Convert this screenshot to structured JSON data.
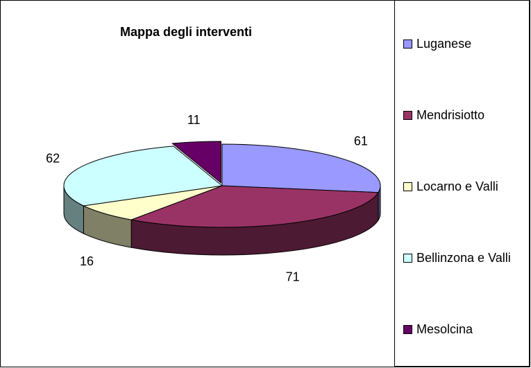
{
  "chart_data": {
    "type": "pie",
    "title": "Mappa degli interventi",
    "categories": [
      "Luganese",
      "Mendrisiotto",
      "Locarno e Valli",
      "Bellinzona e Valli",
      "Mesolcina"
    ],
    "values": [
      61,
      71,
      16,
      62,
      11
    ],
    "colors": [
      "#9999ff",
      "#993366",
      "#ffffcc",
      "#ccffff",
      "#660066"
    ],
    "legend": "right"
  }
}
